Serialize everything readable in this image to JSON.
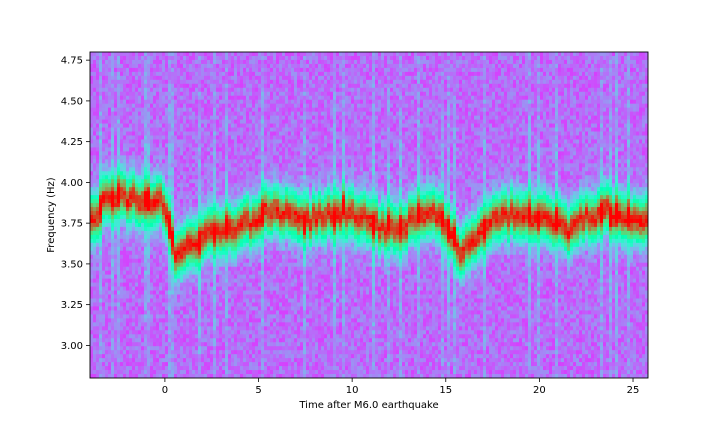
{
  "chart_data": {
    "type": "heatmap",
    "title": "",
    "xlabel": "Time after M6.0 earthquake",
    "ylabel": "Frequency (Hz)",
    "xlim": [
      -4.0,
      25.8
    ],
    "ylim": [
      2.8,
      4.8
    ],
    "x_ticks": [
      0,
      5,
      10,
      15,
      20,
      25
    ],
    "x_tick_labels": [
      "0",
      "5",
      "10",
      "15",
      "20",
      "25"
    ],
    "y_ticks": [
      3.0,
      3.25,
      3.5,
      3.75,
      4.0,
      4.25,
      4.5,
      4.75
    ],
    "y_tick_labels": [
      "3.00",
      "3.25",
      "3.50",
      "3.75",
      "4.00",
      "4.25",
      "4.50",
      "4.75"
    ],
    "colormap": "rainbow",
    "grid": false,
    "colorbar": false,
    "dominant_frequency_track": {
      "time": [
        -4.0,
        -3.0,
        -2.0,
        -1.0,
        0.0,
        0.3,
        0.6,
        1.5,
        2.5,
        3.5,
        4.5,
        5.5,
        6.5,
        7.5,
        8.5,
        9.5,
        10.5,
        11.5,
        12.5,
        13.5,
        14.5,
        15.3,
        15.8,
        16.5,
        17.5,
        18.5,
        19.5,
        20.5,
        21.5,
        22.5,
        23.5,
        24.5,
        25.8
      ],
      "frequency_hz": [
        3.75,
        3.92,
        3.9,
        3.88,
        3.87,
        3.72,
        3.55,
        3.62,
        3.7,
        3.7,
        3.75,
        3.82,
        3.8,
        3.76,
        3.8,
        3.82,
        3.8,
        3.72,
        3.72,
        3.78,
        3.8,
        3.7,
        3.55,
        3.66,
        3.75,
        3.8,
        3.78,
        3.78,
        3.7,
        3.78,
        3.82,
        3.8,
        3.76
      ]
    }
  }
}
